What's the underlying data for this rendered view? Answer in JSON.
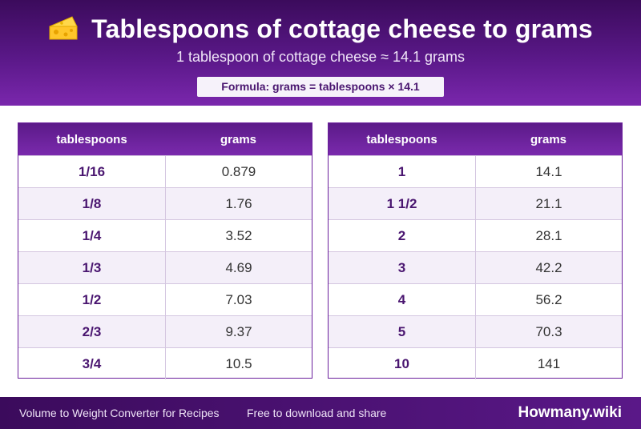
{
  "header": {
    "title": "Tablespoons of cottage cheese to grams",
    "subtitle": "1 tablespoon of cottage cheese ≈ 14.1 grams",
    "formula": "Formula: grams = tablespoons × 14.1",
    "icon": "cheese-icon"
  },
  "tables": {
    "left": {
      "headers": [
        "tablespoons",
        "grams"
      ],
      "rows": [
        [
          "1/16",
          "0.879"
        ],
        [
          "1/8",
          "1.76"
        ],
        [
          "1/4",
          "3.52"
        ],
        [
          "1/3",
          "4.69"
        ],
        [
          "1/2",
          "7.03"
        ],
        [
          "2/3",
          "9.37"
        ],
        [
          "3/4",
          "10.5"
        ]
      ]
    },
    "right": {
      "headers": [
        "tablespoons",
        "grams"
      ],
      "rows": [
        [
          "1",
          "14.1"
        ],
        [
          "1 1/2",
          "21.1"
        ],
        [
          "2",
          "28.1"
        ],
        [
          "3",
          "42.2"
        ],
        [
          "4",
          "56.2"
        ],
        [
          "5",
          "70.3"
        ],
        [
          "10",
          "141"
        ]
      ]
    }
  },
  "footer": {
    "left_text": "Volume to Weight Converter for Recipes",
    "mid_text": "Free to download and share",
    "brand": "Howmany.wiki"
  },
  "colors": {
    "primary": "#5a1888",
    "accent": "#7a27ad",
    "label_text": "#4a1670"
  }
}
